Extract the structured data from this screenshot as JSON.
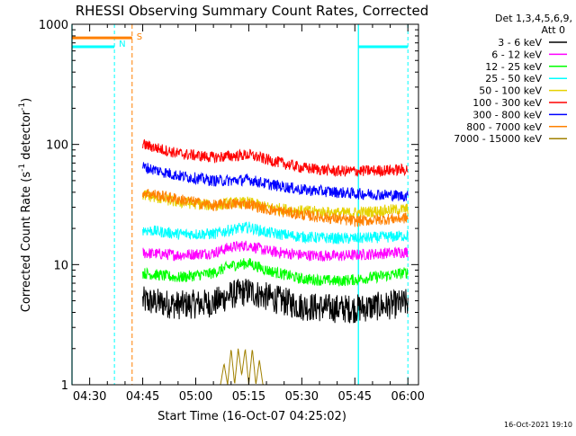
{
  "chart_data": {
    "type": "line",
    "title": "RHESSI Observing Summary Count Rates, Corrected",
    "xlabel": "Start Time (16-Oct-07 04:25:02)",
    "ylabel_main": "Corrected Count Rate (s",
    "ylabel_sup1": "-1",
    "ylabel_mid": " detector",
    "ylabel_sup2": "-1",
    "ylabel_end": ")",
    "y_scale": "log",
    "ylim": [
      1,
      1000
    ],
    "y_ticks": [
      {
        "value": 1,
        "label": "1"
      },
      {
        "value": 10,
        "label": "10"
      },
      {
        "value": 100,
        "label": "100"
      },
      {
        "value": 1000,
        "label": "1000"
      }
    ],
    "xlim": [
      "04:25",
      "06:03"
    ],
    "x_ticks": [
      {
        "time": "04:30",
        "label": "04:30"
      },
      {
        "time": "04:45",
        "label": "04:45"
      },
      {
        "time": "05:00",
        "label": "05:00"
      },
      {
        "time": "05:15",
        "label": "05:15"
      },
      {
        "time": "05:30",
        "label": "05:30"
      },
      {
        "time": "05:45",
        "label": "05:45"
      },
      {
        "time": "06:00",
        "label": "06:00"
      }
    ],
    "legend_placement": "right",
    "legend_header": [
      "Det 1,3,4,5,6,9,",
      "Att 0"
    ],
    "series": [
      {
        "name": "3 - 6 keV",
        "color": "#000000",
        "x": [
          "04:45",
          "04:55",
          "05:05",
          "05:10",
          "05:15",
          "05:20",
          "05:30",
          "05:40",
          "05:45",
          "05:55",
          "06:00"
        ],
        "y": [
          5.0,
          4.6,
          4.8,
          5.6,
          6.0,
          5.4,
          4.5,
          4.3,
          4.3,
          4.6,
          4.8
        ]
      },
      {
        "name": "6 - 12 keV",
        "color": "#ff00ff",
        "x": [
          "04:45",
          "04:55",
          "05:05",
          "05:10",
          "05:15",
          "05:20",
          "05:30",
          "05:40",
          "05:45",
          "05:55",
          "06:00"
        ],
        "y": [
          12.5,
          12.0,
          12.5,
          14.0,
          14.5,
          13.0,
          12.0,
          11.8,
          12.0,
          12.5,
          12.8
        ]
      },
      {
        "name": "12 - 25 keV",
        "color": "#00ff00",
        "x": [
          "04:45",
          "04:55",
          "05:05",
          "05:10",
          "05:15",
          "05:20",
          "05:30",
          "05:40",
          "05:45",
          "05:55",
          "06:00"
        ],
        "y": [
          8.5,
          7.8,
          8.5,
          9.8,
          10.3,
          9.0,
          7.6,
          7.3,
          7.5,
          8.2,
          8.6
        ]
      },
      {
        "name": "25 - 50 keV",
        "color": "#00ffff",
        "x": [
          "04:45",
          "04:55",
          "05:05",
          "05:10",
          "05:15",
          "05:20",
          "05:30",
          "05:40",
          "05:45",
          "05:55",
          "06:00"
        ],
        "y": [
          19.5,
          18.0,
          18.0,
          19.5,
          20.5,
          18.5,
          17.0,
          16.5,
          16.5,
          17.0,
          17.5
        ],
        "early": {
          "x": [
            "04:25",
            "04:37"
          ],
          "y": [
            650,
            650
          ]
        },
        "late": {
          "x": [
            "05:46",
            "06:00"
          ],
          "y": [
            650,
            650
          ]
        }
      },
      {
        "name": "50 - 100 keV",
        "color": "#e6d200",
        "x": [
          "04:45",
          "04:55",
          "05:05",
          "05:10",
          "05:15",
          "05:20",
          "05:30",
          "05:40",
          "05:45",
          "05:55",
          "06:00"
        ],
        "y": [
          38.0,
          33.0,
          31.0,
          32.5,
          33.0,
          30.0,
          28.0,
          27.0,
          27.0,
          28.5,
          29.0
        ]
      },
      {
        "name": "100 - 300 keV",
        "color": "#ff0000",
        "x": [
          "04:45",
          "04:55",
          "05:05",
          "05:10",
          "05:15",
          "05:20",
          "05:30",
          "05:40",
          "05:45",
          "05:55",
          "06:00"
        ],
        "y": [
          100.0,
          84.0,
          78.0,
          80.0,
          82.0,
          75.0,
          64.0,
          60.0,
          60.0,
          61.0,
          62.0
        ]
      },
      {
        "name": "300 - 800 keV",
        "color": "#0000ff",
        "x": [
          "04:45",
          "04:55",
          "05:05",
          "05:10",
          "05:15",
          "05:20",
          "05:30",
          "05:40",
          "05:45",
          "05:55",
          "06:00"
        ],
        "y": [
          65.0,
          55.0,
          50.0,
          50.0,
          51.0,
          47.0,
          42.0,
          40.0,
          39.0,
          38.0,
          37.0
        ]
      },
      {
        "name": "800 - 7000 keV",
        "color": "#ff8000",
        "x": [
          "04:45",
          "04:55",
          "05:05",
          "05:10",
          "05:15",
          "05:20",
          "05:30",
          "05:40",
          "05:45",
          "05:55",
          "06:00"
        ],
        "y": [
          40.0,
          35.0,
          31.0,
          32.0,
          32.0,
          29.0,
          26.0,
          24.0,
          23.0,
          24.0,
          24.5
        ],
        "early": {
          "x": [
            "04:25",
            "04:42"
          ],
          "y": [
            770,
            770
          ]
        }
      },
      {
        "name": "7000 - 15000 keV",
        "color": "#a08000",
        "x": [
          "04:45",
          "05:07",
          "05:08",
          "05:09",
          "05:10",
          "05:11",
          "05:12",
          "05:13",
          "05:14",
          "05:15",
          "05:16",
          "05:17",
          "05:18",
          "05:19",
          "05:20",
          "06:00"
        ],
        "y": [
          1.0,
          1.0,
          1.5,
          1.0,
          2.0,
          1.0,
          2.0,
          1.2,
          2.0,
          1.0,
          2.0,
          1.0,
          1.6,
          1.0,
          1.0,
          1.0
        ]
      }
    ],
    "markers": [
      {
        "label": "S",
        "time": "04:42",
        "color": "#ff8000"
      },
      {
        "label": "N",
        "time": "04:37",
        "color": "#00ffff"
      }
    ],
    "cyan_dashed_lines": [
      "04:37",
      "06:00"
    ],
    "cyan_solid_lines": [
      "04:25",
      "05:46"
    ],
    "orange_dashed_lines": [
      "04:42"
    ],
    "footer_stamp": "16-Oct-2021 19:10"
  }
}
